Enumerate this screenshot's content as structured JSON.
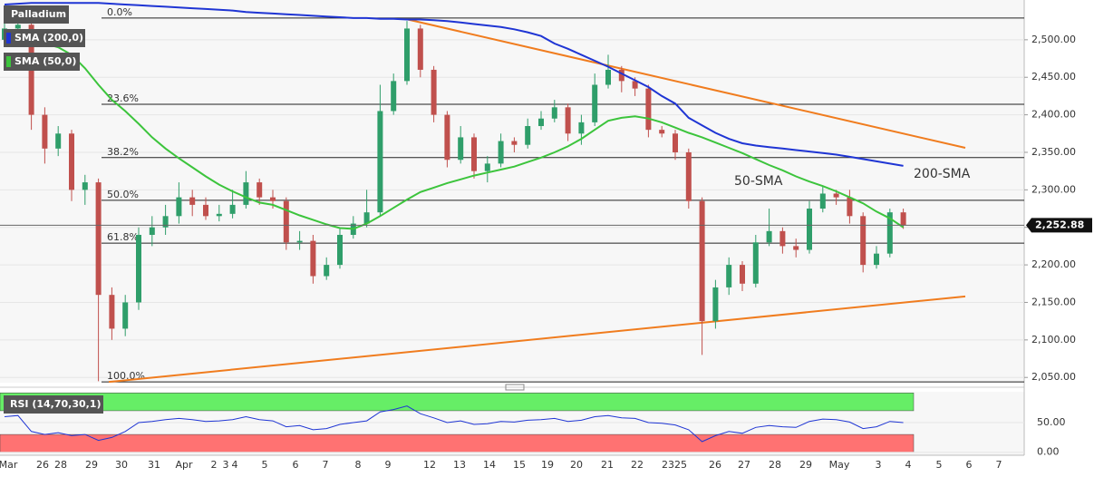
{
  "chart_data": {
    "type": "candlestick",
    "title": "Palladium",
    "up_color": "#2f9e6a",
    "down_color": "#c0504d",
    "ylim": [
      2043,
      2553
    ],
    "yticks": [
      {
        "value": 2050,
        "label": "2,050.00"
      },
      {
        "value": 2100,
        "label": "2,100.00"
      },
      {
        "value": 2150,
        "label": "2,150.00"
      },
      {
        "value": 2200,
        "label": "2,200.00"
      },
      {
        "value": 2250,
        "label": "2,250.00"
      },
      {
        "value": 2300,
        "label": "2,300.00"
      },
      {
        "value": 2350,
        "label": "2,350.00"
      },
      {
        "value": 2400,
        "label": "2,400.00"
      },
      {
        "value": 2450,
        "label": "2,450.00"
      },
      {
        "value": 2500,
        "label": "2,500.00"
      }
    ],
    "xlabels": [
      "Mar",
      "26",
      "28",
      "29",
      "30",
      "31",
      "Apr",
      "2",
      "3",
      "4",
      "5",
      "6",
      "7",
      "8",
      "9",
      "12",
      "13",
      "14",
      "15",
      "19",
      "20",
      "21",
      "22",
      "23",
      "25",
      "26",
      "27",
      "28",
      "29",
      "May",
      "3",
      "4",
      "5",
      "6",
      "7"
    ],
    "open": [
      2500,
      2515,
      2520,
      2400,
      2355,
      2375,
      2300,
      2310,
      2160,
      2115,
      2150,
      2240,
      2250,
      2265,
      2290,
      2280,
      2265,
      2268,
      2280,
      2310,
      2290,
      2285,
      2230,
      2232,
      2185,
      2200,
      2240,
      2255,
      2270,
      2405,
      2445,
      2515,
      2460,
      2400,
      2340,
      2370,
      2325,
      2335,
      2365,
      2360,
      2385,
      2395,
      2410,
      2375,
      2390,
      2440,
      2460,
      2445,
      2435,
      2380,
      2375,
      2350,
      2285,
      2125,
      2170,
      2200,
      2175,
      2230,
      2245,
      2225,
      2220,
      2275,
      2295,
      2290,
      2265,
      2200,
      2215,
      2270
    ],
    "high": [
      2525,
      2530,
      2525,
      2410,
      2385,
      2380,
      2320,
      2315,
      2170,
      2160,
      2250,
      2265,
      2280,
      2310,
      2300,
      2290,
      2280,
      2300,
      2325,
      2315,
      2300,
      2290,
      2245,
      2240,
      2210,
      2250,
      2265,
      2300,
      2440,
      2455,
      2525,
      2520,
      2465,
      2405,
      2385,
      2375,
      2345,
      2375,
      2370,
      2395,
      2405,
      2420,
      2415,
      2400,
      2455,
      2480,
      2465,
      2450,
      2440,
      2385,
      2380,
      2355,
      2290,
      2180,
      2210,
      2205,
      2240,
      2275,
      2250,
      2235,
      2285,
      2305,
      2300,
      2300,
      2270,
      2225,
      2275,
      2275
    ],
    "low": [
      2495,
      2505,
      2380,
      2335,
      2345,
      2285,
      2280,
      2045,
      2100,
      2105,
      2140,
      2225,
      2240,
      2255,
      2265,
      2260,
      2258,
      2262,
      2275,
      2280,
      2275,
      2220,
      2220,
      2175,
      2180,
      2195,
      2235,
      2250,
      2265,
      2400,
      2440,
      2450,
      2390,
      2330,
      2335,
      2315,
      2310,
      2330,
      2350,
      2355,
      2380,
      2390,
      2365,
      2360,
      2385,
      2435,
      2430,
      2425,
      2370,
      2370,
      2340,
      2275,
      2080,
      2115,
      2160,
      2165,
      2170,
      2225,
      2215,
      2210,
      2215,
      2270,
      2280,
      2255,
      2190,
      2195,
      2210,
      2248
    ],
    "close": [
      2515,
      2520,
      2400,
      2355,
      2375,
      2300,
      2310,
      2160,
      2115,
      2150,
      2240,
      2250,
      2265,
      2290,
      2280,
      2265,
      2268,
      2280,
      2310,
      2290,
      2285,
      2230,
      2232,
      2185,
      2200,
      2240,
      2255,
      2270,
      2405,
      2445,
      2515,
      2460,
      2400,
      2340,
      2370,
      2325,
      2335,
      2365,
      2360,
      2385,
      2395,
      2410,
      2375,
      2390,
      2440,
      2460,
      2445,
      2435,
      2380,
      2375,
      2350,
      2285,
      2125,
      2170,
      2200,
      2175,
      2230,
      2245,
      2225,
      2220,
      2275,
      2295,
      2290,
      2265,
      2200,
      2215,
      2270,
      2253
    ],
    "series": [
      {
        "name": "SMA (200,0)",
        "color": "#1f35d4",
        "values": [
          2547,
          2548,
          2549,
          2549,
          2549,
          2549,
          2549,
          2549,
          2548,
          2547,
          2546,
          2545,
          2544,
          2543,
          2542,
          2541,
          2540,
          2539,
          2537,
          2536,
          2535,
          2534,
          2533,
          2532,
          2531,
          2530,
          2529,
          2529,
          2528,
          2528,
          2527,
          2527,
          2526,
          2525,
          2523,
          2521,
          2519,
          2517,
          2514,
          2510,
          2505,
          2495,
          2488,
          2480,
          2472,
          2464,
          2455,
          2446,
          2437,
          2425,
          2415,
          2396,
          2386,
          2376,
          2368,
          2362,
          2359,
          2357,
          2355,
          2353,
          2351,
          2349,
          2347,
          2344,
          2341,
          2338,
          2335,
          2332
        ]
      },
      {
        "name": "SMA (50,0)",
        "color": "#3cc43c",
        "values": [
          null,
          null,
          null,
          2495,
          2490,
          2480,
          2462,
          2440,
          2420,
          2405,
          2388,
          2370,
          2355,
          2342,
          2330,
          2318,
          2307,
          2298,
          2290,
          2283,
          2280,
          2273,
          2266,
          2260,
          2254,
          2249,
          2248,
          2255,
          2265,
          2276,
          2287,
          2297,
          2303,
          2309,
          2314,
          2319,
          2323,
          2327,
          2331,
          2337,
          2343,
          2350,
          2358,
          2368,
          2380,
          2392,
          2396,
          2398,
          2395,
          2390,
          2383,
          2376,
          2370,
          2363,
          2356,
          2349,
          2341,
          2333,
          2326,
          2318,
          2311,
          2305,
          2298,
          2290,
          2282,
          2271,
          2262,
          2250
        ]
      }
    ],
    "fib_levels": [
      {
        "label": "0.0%",
        "value": 2529
      },
      {
        "label": "23.6%",
        "value": 2414
      },
      {
        "label": "38.2%",
        "value": 2343
      },
      {
        "label": "50.0%",
        "value": 2286
      },
      {
        "label": "61.8%",
        "value": 2229
      },
      {
        "label": "100.0%",
        "value": 2044
      }
    ],
    "trendlines": [
      {
        "color": "#f07c1e",
        "values": [
          2527,
          2356
        ]
      },
      {
        "color": "#f07c1e",
        "values": [
          2044,
          2158
        ]
      }
    ],
    "annotations": [
      {
        "text": "50-SMA",
        "color": "#3cbc3c"
      },
      {
        "text": "200-SMA",
        "color": "#7b5fc0"
      }
    ],
    "last_price": {
      "value": 2252.88,
      "label": "2,252.88"
    },
    "rsi": {
      "name": "RSI (14,70,30,1)",
      "color": "#1f35d4",
      "ylim": [
        -5,
        102
      ],
      "yticks": [
        {
          "value": 0,
          "label": "0.00"
        },
        {
          "value": 50,
          "label": "50.00"
        }
      ],
      "upper_band": [
        70,
        100
      ],
      "upper_color": "#66ee66",
      "lower_band": [
        0,
        30
      ],
      "lower_color": "#ff7272",
      "values": [
        60,
        62,
        35,
        30,
        33,
        28,
        30,
        20,
        25,
        35,
        50,
        52,
        55,
        57,
        55,
        52,
        53,
        55,
        60,
        55,
        53,
        43,
        45,
        38,
        40,
        47,
        50,
        53,
        68,
        72,
        78,
        65,
        58,
        50,
        53,
        47,
        48,
        52,
        51,
        54,
        55,
        57,
        52,
        54,
        60,
        62,
        58,
        57,
        50,
        49,
        46,
        38,
        18,
        28,
        35,
        32,
        42,
        45,
        43,
        42,
        52,
        56,
        55,
        51,
        40,
        43,
        52,
        50
      ]
    }
  }
}
